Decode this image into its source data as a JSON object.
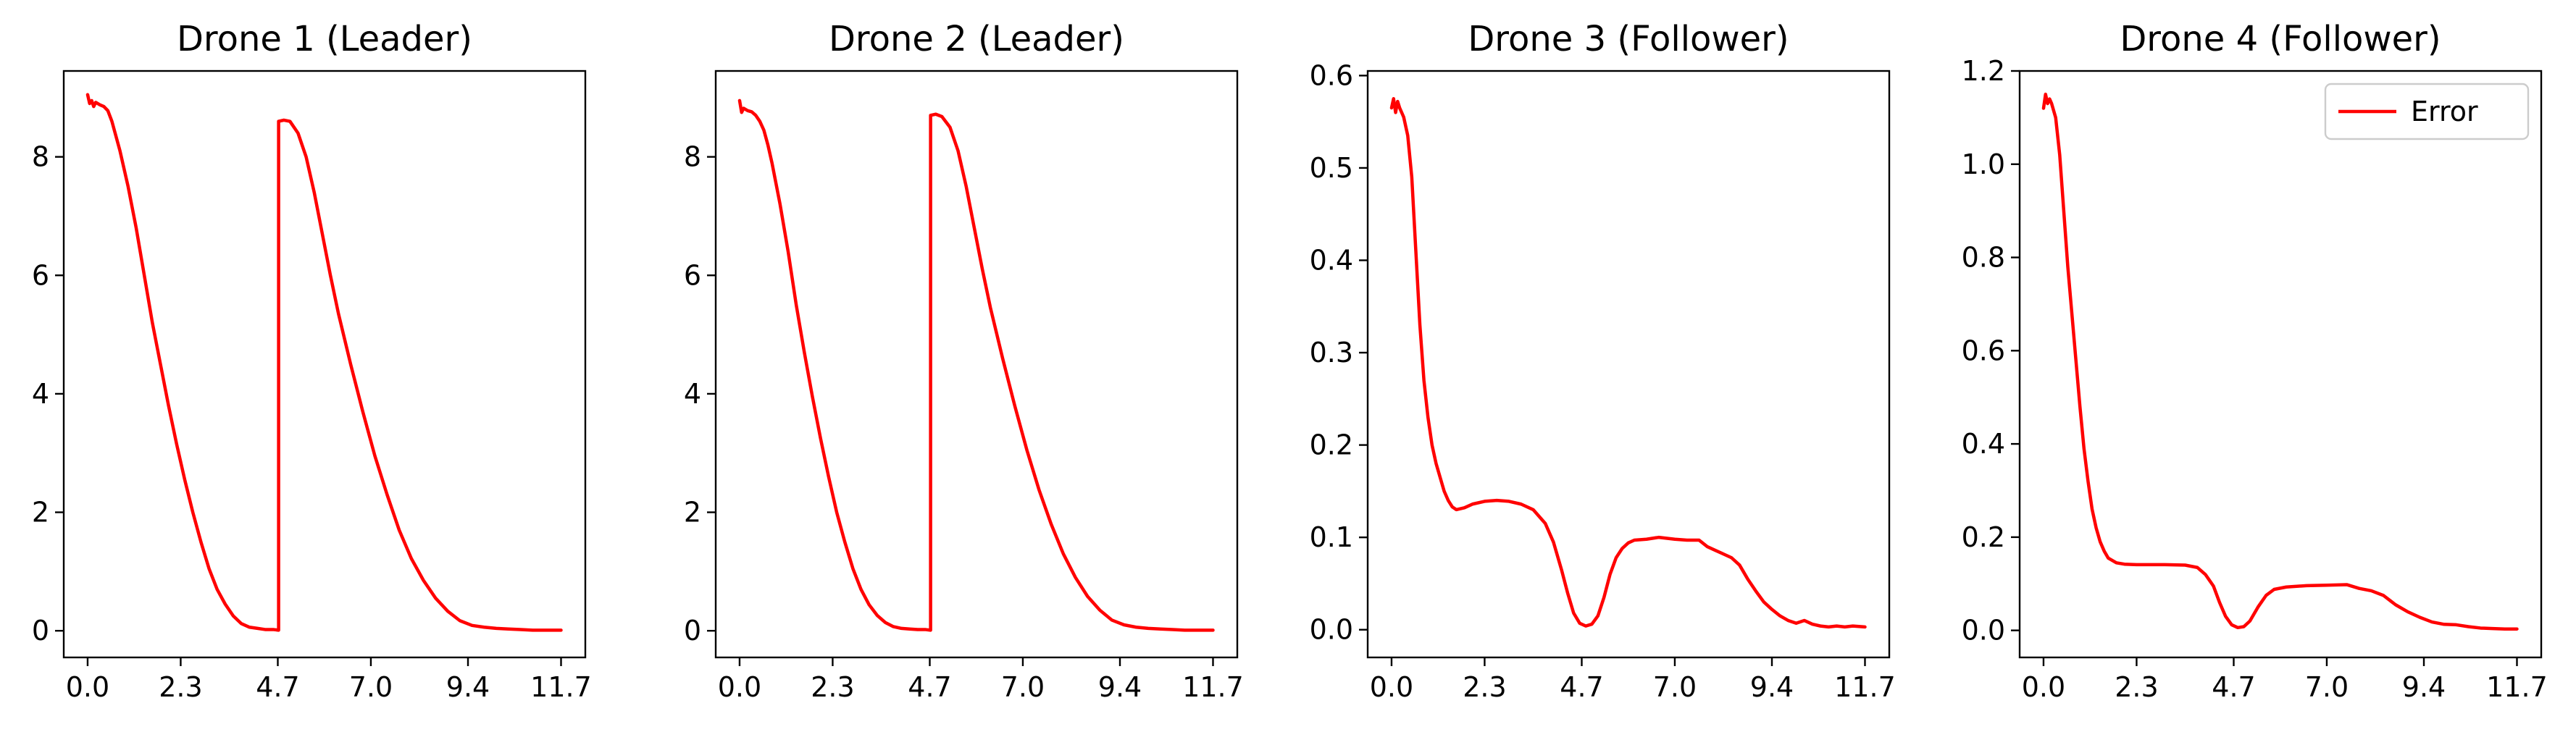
{
  "chart_data": [
    {
      "type": "line",
      "title": "Drone 1 (Leader)",
      "xlabel": "",
      "ylabel": "",
      "xlim": [
        -0.59,
        12.3
      ],
      "ylim": [
        -0.45,
        9.45
      ],
      "xticks": [
        0.0,
        2.3,
        4.7,
        7.0,
        9.4,
        11.7
      ],
      "xtick_labels": [
        "0.0",
        "2.3",
        "4.7",
        "7.0",
        "9.4",
        "11.7"
      ],
      "yticks": [
        0,
        2,
        4,
        6,
        8
      ],
      "ytick_labels": [
        "0",
        "2",
        "4",
        "6",
        "8"
      ],
      "grid": false,
      "series": [
        {
          "color": "#ff0000",
          "x": [
            0.0,
            0.05,
            0.1,
            0.15,
            0.2,
            0.3,
            0.4,
            0.5,
            0.6,
            0.8,
            1.0,
            1.2,
            1.4,
            1.6,
            1.8,
            2.0,
            2.2,
            2.4,
            2.6,
            2.8,
            3.0,
            3.2,
            3.4,
            3.6,
            3.8,
            4.0,
            4.2,
            4.4,
            4.6,
            4.72,
            4.72,
            4.85,
            5.0,
            5.2,
            5.4,
            5.6,
            5.8,
            6.0,
            6.2,
            6.5,
            6.8,
            7.1,
            7.4,
            7.7,
            8.0,
            8.3,
            8.6,
            8.9,
            9.2,
            9.5,
            9.8,
            10.1,
            10.4,
            10.7,
            11.0,
            11.3,
            11.7
          ],
          "y": [
            9.05,
            8.9,
            8.95,
            8.85,
            8.92,
            8.88,
            8.85,
            8.78,
            8.6,
            8.1,
            7.5,
            6.8,
            6.0,
            5.2,
            4.5,
            3.8,
            3.15,
            2.55,
            2.0,
            1.5,
            1.05,
            0.7,
            0.45,
            0.25,
            0.12,
            0.06,
            0.04,
            0.02,
            0.02,
            0.01,
            8.6,
            8.62,
            8.6,
            8.4,
            8.0,
            7.4,
            6.7,
            6.0,
            5.35,
            4.5,
            3.7,
            2.95,
            2.3,
            1.7,
            1.22,
            0.85,
            0.55,
            0.33,
            0.17,
            0.09,
            0.06,
            0.04,
            0.03,
            0.02,
            0.01,
            0.01,
            0.01
          ]
        }
      ]
    },
    {
      "type": "line",
      "title": "Drone 2 (Leader)",
      "xlabel": "",
      "ylabel": "",
      "xlim": [
        -0.59,
        12.3
      ],
      "ylim": [
        -0.45,
        9.45
      ],
      "xticks": [
        0.0,
        2.3,
        4.7,
        7.0,
        9.4,
        11.7
      ],
      "xtick_labels": [
        "0.0",
        "2.3",
        "4.7",
        "7.0",
        "9.4",
        "11.7"
      ],
      "yticks": [
        0,
        2,
        4,
        6,
        8
      ],
      "ytick_labels": [
        "0",
        "2",
        "4",
        "6",
        "8"
      ],
      "grid": false,
      "series": [
        {
          "color": "#ff0000",
          "x": [
            0.0,
            0.05,
            0.1,
            0.2,
            0.3,
            0.4,
            0.5,
            0.6,
            0.7,
            0.8,
            1.0,
            1.2,
            1.4,
            1.6,
            1.8,
            2.0,
            2.2,
            2.4,
            2.6,
            2.8,
            3.0,
            3.2,
            3.4,
            3.6,
            3.8,
            4.0,
            4.2,
            4.4,
            4.6,
            4.72,
            4.72,
            4.85,
            5.0,
            5.2,
            5.4,
            5.6,
            5.8,
            6.0,
            6.2,
            6.5,
            6.8,
            7.1,
            7.4,
            7.7,
            8.0,
            8.3,
            8.6,
            8.9,
            9.2,
            9.5,
            9.8,
            10.1,
            10.4,
            10.7,
            11.0,
            11.3,
            11.7
          ],
          "y": [
            8.95,
            8.75,
            8.82,
            8.78,
            8.76,
            8.7,
            8.6,
            8.45,
            8.2,
            7.9,
            7.2,
            6.4,
            5.5,
            4.7,
            3.95,
            3.25,
            2.6,
            2.0,
            1.5,
            1.05,
            0.7,
            0.44,
            0.26,
            0.14,
            0.07,
            0.04,
            0.03,
            0.02,
            0.02,
            0.01,
            8.7,
            8.72,
            8.68,
            8.5,
            8.1,
            7.5,
            6.8,
            6.1,
            5.45,
            4.6,
            3.8,
            3.05,
            2.38,
            1.8,
            1.3,
            0.9,
            0.58,
            0.35,
            0.18,
            0.1,
            0.06,
            0.04,
            0.03,
            0.02,
            0.01,
            0.01,
            0.01
          ]
        }
      ]
    },
    {
      "type": "line",
      "title": "Drone 3 (Follower)",
      "xlabel": "",
      "ylabel": "",
      "xlim": [
        -0.59,
        12.3
      ],
      "ylim": [
        -0.03,
        0.605
      ],
      "xticks": [
        0.0,
        2.3,
        4.7,
        7.0,
        9.4,
        11.7
      ],
      "xtick_labels": [
        "0.0",
        "2.3",
        "4.7",
        "7.0",
        "9.4",
        "11.7"
      ],
      "yticks": [
        0.0,
        0.1,
        0.2,
        0.3,
        0.4,
        0.5,
        0.6
      ],
      "ytick_labels": [
        "0.0",
        "0.1",
        "0.2",
        "0.3",
        "0.4",
        "0.5",
        "0.6"
      ],
      "grid": false,
      "series": [
        {
          "color": "#ff0000",
          "x": [
            0.0,
            0.05,
            0.1,
            0.15,
            0.2,
            0.3,
            0.4,
            0.5,
            0.6,
            0.7,
            0.8,
            0.9,
            1.0,
            1.1,
            1.2,
            1.3,
            1.4,
            1.5,
            1.6,
            1.8,
            2.0,
            2.3,
            2.6,
            2.9,
            3.2,
            3.5,
            3.8,
            4.0,
            4.2,
            4.35,
            4.5,
            4.65,
            4.8,
            4.95,
            5.1,
            5.25,
            5.4,
            5.55,
            5.7,
            5.85,
            6.0,
            6.3,
            6.6,
            7.0,
            7.3,
            7.6,
            7.8,
            8.0,
            8.2,
            8.4,
            8.6,
            8.8,
            9.0,
            9.2,
            9.4,
            9.6,
            9.8,
            10.0,
            10.2,
            10.4,
            10.6,
            10.8,
            11.0,
            11.2,
            11.4,
            11.7
          ],
          "y": [
            0.565,
            0.575,
            0.56,
            0.572,
            0.565,
            0.555,
            0.535,
            0.49,
            0.41,
            0.33,
            0.27,
            0.23,
            0.2,
            0.18,
            0.165,
            0.15,
            0.14,
            0.133,
            0.13,
            0.132,
            0.136,
            0.139,
            0.14,
            0.139,
            0.136,
            0.13,
            0.115,
            0.095,
            0.065,
            0.04,
            0.018,
            0.007,
            0.004,
            0.006,
            0.015,
            0.035,
            0.06,
            0.078,
            0.088,
            0.094,
            0.097,
            0.098,
            0.1,
            0.098,
            0.097,
            0.097,
            0.09,
            0.086,
            0.082,
            0.078,
            0.07,
            0.055,
            0.042,
            0.03,
            0.022,
            0.015,
            0.01,
            0.007,
            0.01,
            0.006,
            0.004,
            0.003,
            0.004,
            0.003,
            0.004,
            0.003
          ]
        }
      ]
    },
    {
      "type": "line",
      "title": "Drone 4 (Follower)",
      "xlabel": "",
      "ylabel": "",
      "xlim": [
        -0.59,
        12.3
      ],
      "ylim": [
        -0.058,
        1.2
      ],
      "xticks": [
        0.0,
        2.3,
        4.7,
        7.0,
        9.4,
        11.7
      ],
      "xtick_labels": [
        "0.0",
        "2.3",
        "4.7",
        "7.0",
        "9.4",
        "11.7"
      ],
      "yticks": [
        0.0,
        0.2,
        0.4,
        0.6,
        0.8,
        1.0,
        1.2
      ],
      "ytick_labels": [
        "0.0",
        "0.2",
        "0.4",
        "0.6",
        "0.8",
        "1.0",
        "1.2"
      ],
      "grid": false,
      "legend": {
        "position": "upper right",
        "entries": [
          "Error"
        ]
      },
      "series": [
        {
          "name": "Error",
          "color": "#ff0000",
          "x": [
            0.0,
            0.05,
            0.1,
            0.15,
            0.2,
            0.3,
            0.4,
            0.5,
            0.6,
            0.7,
            0.8,
            0.9,
            1.0,
            1.1,
            1.2,
            1.3,
            1.4,
            1.5,
            1.6,
            1.8,
            2.0,
            2.3,
            2.6,
            3.0,
            3.5,
            3.8,
            4.0,
            4.2,
            4.35,
            4.5,
            4.65,
            4.8,
            4.95,
            5.1,
            5.3,
            5.5,
            5.7,
            6.0,
            6.5,
            7.0,
            7.5,
            7.8,
            8.1,
            8.4,
            8.7,
            9.0,
            9.3,
            9.6,
            9.9,
            10.2,
            10.5,
            10.8,
            11.1,
            11.4,
            11.7
          ],
          "y": [
            1.12,
            1.15,
            1.13,
            1.14,
            1.13,
            1.1,
            1.02,
            0.9,
            0.78,
            0.68,
            0.58,
            0.48,
            0.39,
            0.32,
            0.26,
            0.22,
            0.19,
            0.17,
            0.155,
            0.145,
            0.142,
            0.141,
            0.141,
            0.141,
            0.14,
            0.135,
            0.12,
            0.095,
            0.06,
            0.03,
            0.012,
            0.006,
            0.008,
            0.02,
            0.05,
            0.075,
            0.088,
            0.093,
            0.096,
            0.097,
            0.098,
            0.09,
            0.085,
            0.075,
            0.055,
            0.04,
            0.028,
            0.018,
            0.013,
            0.012,
            0.008,
            0.005,
            0.004,
            0.003,
            0.003
          ]
        }
      ]
    }
  ]
}
